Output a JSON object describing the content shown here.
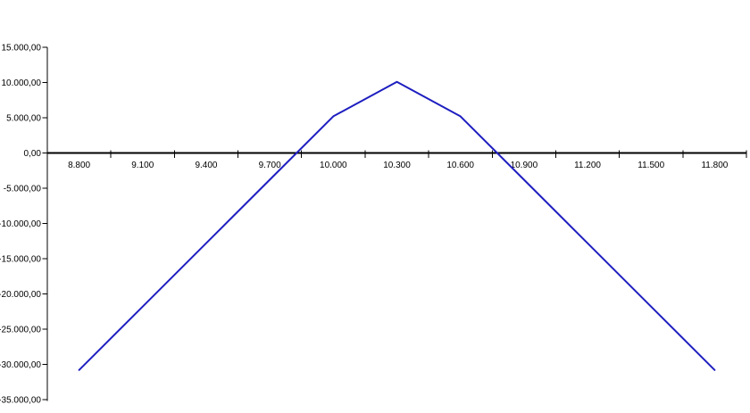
{
  "chart_data": {
    "type": "line",
    "title": "",
    "xlabel": "",
    "ylabel": "",
    "grid": false,
    "legend": "none",
    "background": "#ffffff",
    "axis_color": "#000000",
    "text_color": "#000000",
    "categories": [
      "8.800",
      "9.100",
      "9.400",
      "9.700",
      "10.000",
      "10.300",
      "10.600",
      "10.900",
      "11.200",
      "11.500",
      "11.800"
    ],
    "x_numeric": [
      8800,
      9100,
      9400,
      9700,
      10000,
      10300,
      10600,
      10900,
      11200,
      11500,
      11800
    ],
    "series": [
      {
        "name": "",
        "color": "#1e1ec0",
        "line_width": 2,
        "values": [
          -30800,
          -21800,
          -12800,
          -3800,
          5200,
          10100,
          5200,
          -3800,
          -12800,
          -21800,
          -30800
        ]
      }
    ],
    "y_axis": {
      "min": -35000,
      "max": 15000,
      "step": 5000,
      "tick_labels": [
        "15.000,00",
        "10.000,00",
        "5.000,00",
        "0,00",
        "-5.000,00",
        "-10.000,00",
        "-15.000,00",
        "-20.000,00",
        "-25.000,00",
        "-30.000,00",
        "-35.000,00"
      ]
    }
  }
}
